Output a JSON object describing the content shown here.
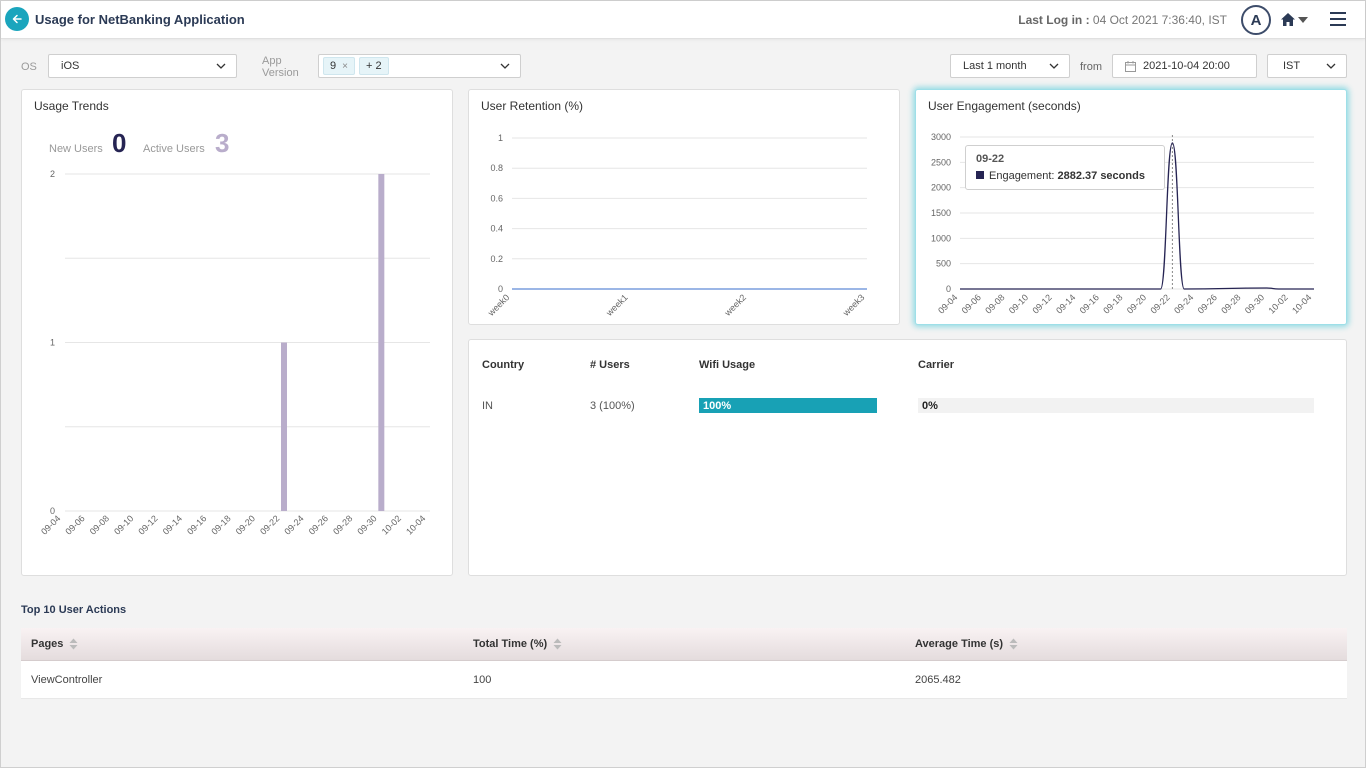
{
  "header": {
    "title": "Usage for NetBanking Application",
    "last_log_label": "Last Log in :",
    "last_log_value": "04 Oct 2021 7:36:40, IST",
    "avatar_initial": "A"
  },
  "filters": {
    "os_label": "OS",
    "os_value": "iOS",
    "app_version_label_1": "App",
    "app_version_label_2": "Version",
    "app_version_chip": "9",
    "app_version_chip_close": "×",
    "app_version_more": "+ 2",
    "range_value": "Last 1 month",
    "from_label": "from",
    "from_value": "2021-10-04 20:00",
    "timezone_value": "IST"
  },
  "usage_trends": {
    "title": "Usage Trends",
    "new_users_label": "New Users",
    "new_users_value": "0",
    "active_users_label": "Active Users",
    "active_users_value": "3",
    "new_users_color": "#262453",
    "active_users_color": "#b9adcb"
  },
  "user_retention": {
    "title": "User Retention (%)"
  },
  "user_engagement": {
    "title": "User Engagement (seconds)",
    "tooltip_title": "09-22",
    "tooltip_label": "Engagement: ",
    "tooltip_value": "2882.37 seconds"
  },
  "chart_data": [
    {
      "type": "bar",
      "title": "Usage Trends",
      "categories": [
        "09-04",
        "09-06",
        "09-08",
        "09-10",
        "09-12",
        "09-14",
        "09-16",
        "09-18",
        "09-20",
        "09-22",
        "09-24",
        "09-26",
        "09-28",
        "09-30",
        "10-02",
        "10-04"
      ],
      "series": [
        {
          "name": "New Users",
          "points": [
            {
              "x": "09-22",
              "y": 0
            },
            {
              "x": "09-30",
              "y": 0
            }
          ]
        },
        {
          "name": "Active Users",
          "points": [
            {
              "x": "09-22",
              "y": 1
            },
            {
              "x": "09-30",
              "y": 2
            }
          ]
        }
      ],
      "yticks": [
        "0",
        "1",
        "2"
      ],
      "ylim": [
        0,
        2
      ],
      "grid": true
    },
    {
      "type": "line",
      "title": "User Retention (%)",
      "categories": [
        "week0",
        "week1",
        "week2",
        "week3"
      ],
      "series": [
        {
          "values": [
            0,
            0,
            0,
            0
          ]
        }
      ],
      "yticks": [
        "0",
        "0.2",
        "0.4",
        "0.6",
        "0.8",
        "1"
      ],
      "ylim": [
        0,
        1
      ],
      "grid": true
    },
    {
      "type": "line",
      "title": "User Engagement (seconds)",
      "categories": [
        "09-04",
        "09-06",
        "09-08",
        "09-10",
        "09-12",
        "09-14",
        "09-16",
        "09-18",
        "09-20",
        "09-22",
        "09-24",
        "09-26",
        "09-28",
        "09-30",
        "10-02",
        "10-04"
      ],
      "series": [
        {
          "name": "Engagement",
          "points": [
            {
              "x": "09-04",
              "y": 0
            },
            {
              "x": "09-21",
              "y": 0
            },
            {
              "x": "09-22",
              "y": 2882.37
            },
            {
              "x": "09-23",
              "y": 0
            },
            {
              "x": "09-30",
              "y": 20
            },
            {
              "x": "10-01",
              "y": 0
            },
            {
              "x": "10-04",
              "y": 0
            }
          ]
        }
      ],
      "yticks": [
        "0",
        "500",
        "1000",
        "1500",
        "2000",
        "2500",
        "3000"
      ],
      "ylim": [
        0,
        3000
      ],
      "grid": true
    }
  ],
  "country_table": {
    "headers": [
      "Country",
      "# Users",
      "Wifi Usage",
      "Carrier"
    ],
    "rows": [
      {
        "country": "IN",
        "users": "3 (100%)",
        "wifi_label": "100%",
        "wifi_fraction": 1.0,
        "carrier_label": "0%",
        "carrier_fraction": 0.0
      }
    ],
    "wifi_color": "#18a1b5"
  },
  "top_actions": {
    "title": "Top 10 User Actions",
    "headers": [
      "Pages",
      "Total Time (%)",
      "Average Time (s)"
    ],
    "rows": [
      {
        "page": "ViewController",
        "total_time": "100",
        "avg_time": "2065.482"
      }
    ]
  }
}
